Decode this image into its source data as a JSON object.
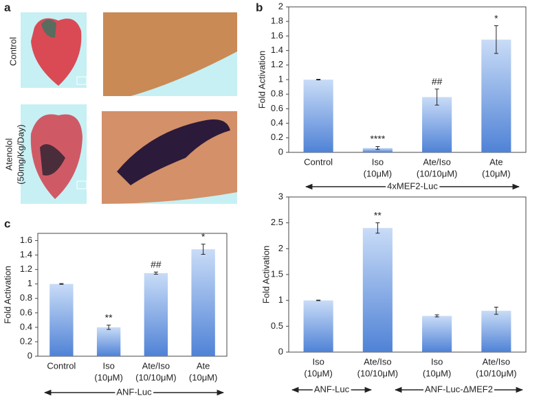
{
  "panel_a": {
    "label": "a",
    "rows": [
      [
        "Control"
      ],
      [
        "Atenolol",
        "(50mg/Kg/Day)"
      ]
    ]
  },
  "chart_data": [
    {
      "type": "bar",
      "panel": "b",
      "ylabel": "Fold Activation",
      "color": "#4f82d6",
      "categories": [
        [
          "Control"
        ],
        [
          "Iso",
          "(10μM)"
        ],
        [
          "Ate/Iso",
          "(10/10μM)"
        ],
        [
          "Ate",
          "(10μM)"
        ]
      ],
      "values": [
        1.0,
        0.06,
        0.76,
        1.55
      ],
      "errors": [
        0.005,
        0.02,
        0.11,
        0.19
      ],
      "annotations": [
        null,
        "****",
        "##",
        "*"
      ],
      "ylim": [
        0,
        2
      ],
      "yticks": [
        0,
        0.2,
        0.4,
        0.6,
        0.8,
        1,
        1.2,
        1.4,
        1.6,
        1.8,
        2
      ],
      "groups": [
        "4xMEF2-Luc"
      ]
    },
    {
      "type": "bar",
      "panel": "c",
      "ylabel": "Fold Activation",
      "color": "#4f82d6",
      "categories": [
        [
          "Control"
        ],
        [
          "Iso",
          "(10μM)"
        ],
        [
          "Ate/Iso",
          "(10/10μM)"
        ],
        [
          "Ate",
          "(10μM)"
        ]
      ],
      "values": [
        1.0,
        0.4,
        1.15,
        1.48
      ],
      "errors": [
        0.005,
        0.03,
        0.015,
        0.07
      ],
      "annotations": [
        null,
        "**",
        "##",
        "*"
      ],
      "ylim": [
        0,
        1.7
      ],
      "yticks": [
        0,
        0.2,
        0.4,
        0.6,
        0.8,
        1,
        1.2,
        1.4,
        1.6
      ],
      "groups": [
        "ANF-Luc"
      ]
    },
    {
      "type": "bar",
      "ylabel": "Fold Activation",
      "color": "#4f82d6",
      "categories": [
        [
          "Iso",
          "(10μM)"
        ],
        [
          "Ate/Iso",
          "(10/10μM)"
        ],
        [
          "Iso",
          "(10μM)"
        ],
        [
          "Ate/Iso",
          "(10/10μM)"
        ]
      ],
      "values": [
        1.0,
        2.4,
        0.7,
        0.8
      ],
      "errors": [
        0.005,
        0.1,
        0.02,
        0.07
      ],
      "annotations": [
        null,
        "**",
        null,
        null
      ],
      "ylim": [
        0,
        3
      ],
      "yticks": [
        0,
        0.5,
        1,
        1.5,
        2,
        2.5,
        3
      ],
      "groups": [
        "ANF-Luc",
        "ANF-Luc-ΔMEF2"
      ]
    }
  ]
}
